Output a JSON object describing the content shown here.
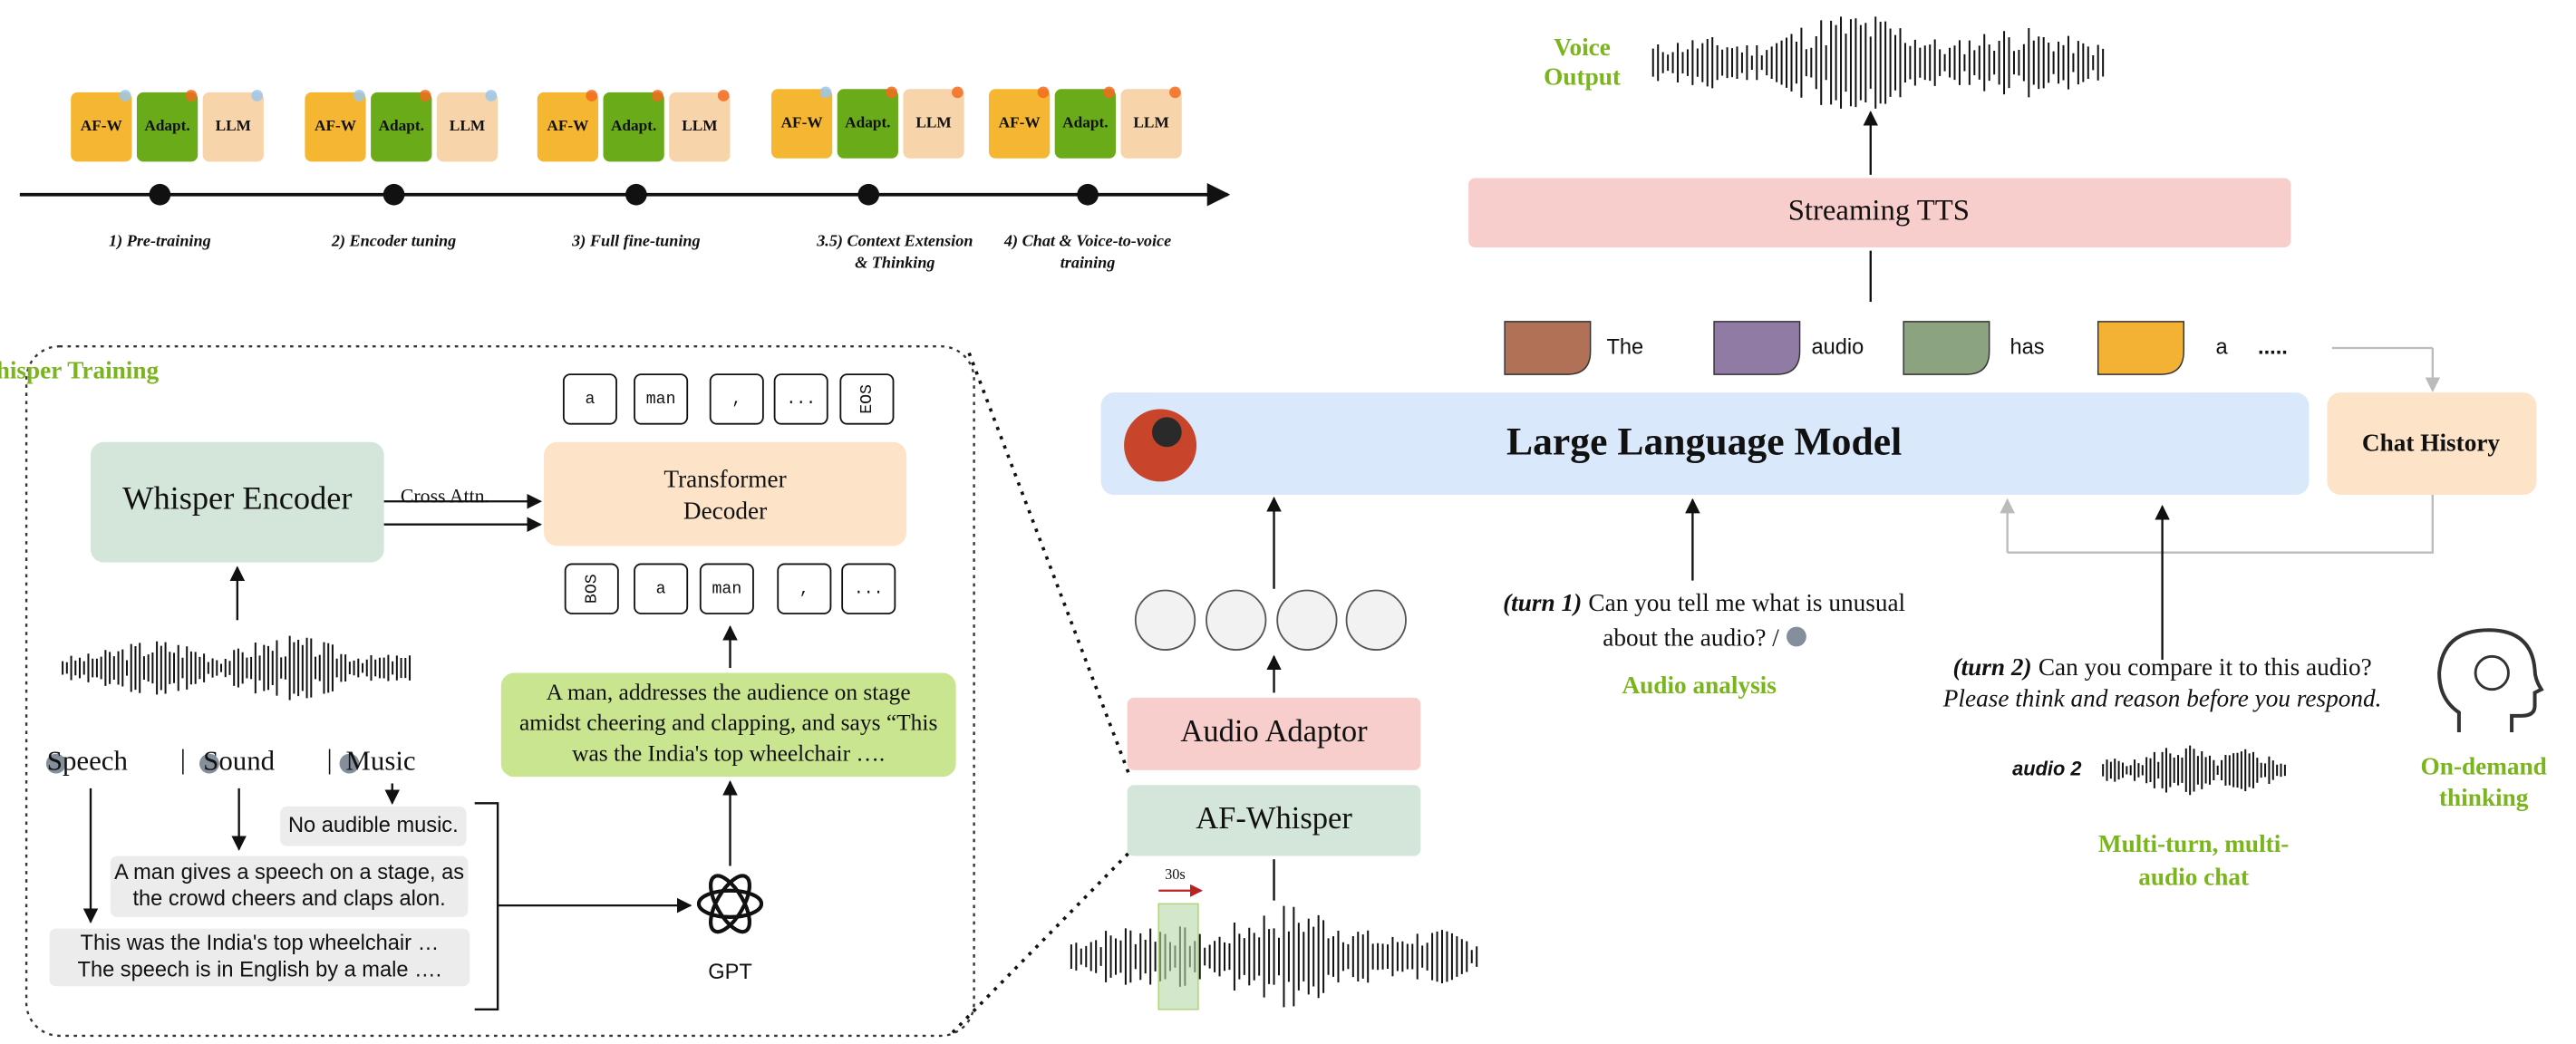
{
  "timeline": {
    "stages": [
      {
        "boxes": [
          "AF-W",
          "Adapt.",
          "LLM"
        ],
        "label": [
          "1) Pre-training"
        ]
      },
      {
        "boxes": [
          "AF-W",
          "Adapt.",
          "LLM"
        ],
        "label": [
          "2) Encoder tuning"
        ]
      },
      {
        "boxes": [
          "AF-W",
          "Adapt.",
          "LLM"
        ],
        "label": [
          "3) Full fine-tuning"
        ]
      },
      {
        "boxes": [
          "AF-W",
          "Adapt.",
          "LLM"
        ],
        "label": [
          "3.5) Context Extension",
          "& Thinking"
        ]
      },
      {
        "boxes": [
          "AF-W",
          "Adapt.",
          "LLM"
        ],
        "label": [
          "4) Chat & Voice-to-voice",
          "training"
        ]
      }
    ]
  },
  "training": {
    "title": "AF-Whisper Training",
    "encoder": "Whisper Encoder",
    "cross_attn": "Cross Attn.",
    "decoder": [
      "Transformer",
      "Decoder"
    ],
    "output_tokens": [
      "a",
      "man",
      ",",
      "...",
      "EOS"
    ],
    "input_tokens": [
      "BOS",
      "a",
      "man",
      ",",
      "..."
    ],
    "caption": [
      "A man, addresses the audience on stage",
      "amidst cheering and clapping, and says “This",
      "was the India's top wheelchair …."
    ],
    "sources": [
      "Speech",
      "Sound",
      "Music"
    ],
    "separator": "|",
    "gpt_outputs": [
      [
        "No audible music."
      ],
      [
        "A man gives a speech on a stage, as",
        "the crowd cheers and claps alon."
      ],
      [
        "This was the India's top wheelchair …",
        "The speech is in English by a male …."
      ]
    ],
    "gpt": "GPT"
  },
  "pipeline": {
    "audio_adaptor": "Audio Adaptor",
    "af_whisper": "AF-Whisper",
    "window": "30s",
    "llm": "Large Language Model",
    "chat_history": "Chat History",
    "tts": "Streaming TTS",
    "voice_output": [
      "Voice",
      "Output"
    ],
    "response_tokens": [
      "The",
      "audio",
      "has",
      "a"
    ],
    "ellipsis": ".....",
    "turn1": {
      "tag": "(turn 1)",
      "lines": [
        "Can you tell me what is unusual",
        "about the audio? /"
      ]
    },
    "audio_analysis": "Audio analysis",
    "turn2": {
      "tag": "(turn 2)",
      "question": "Can you compare it to this audio?",
      "instruction": "Please think and reason before you respond."
    },
    "audio2": "audio 2",
    "multi_turn": [
      "Multi-turn, multi-",
      "audio chat"
    ],
    "thinking": [
      "On-demand",
      "thinking"
    ]
  }
}
